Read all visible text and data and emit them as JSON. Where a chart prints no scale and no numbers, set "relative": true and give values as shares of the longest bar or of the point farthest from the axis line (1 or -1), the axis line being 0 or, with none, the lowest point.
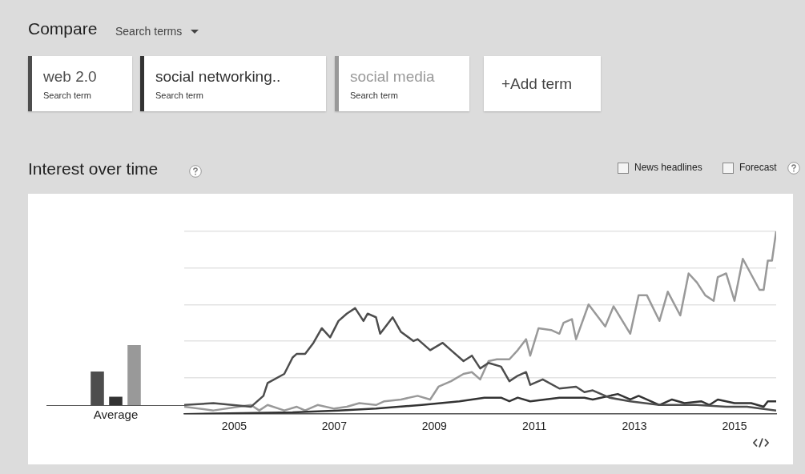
{
  "chart_data": [
    {
      "type": "other",
      "title": "Compare",
      "subtitle": "Search terms",
      "annotations": [
        "+Add term",
        "Search term",
        "Search term",
        "Search term"
      ]
    },
    {
      "type": "bar",
      "categories": [
        null,
        "Average",
        null
      ],
      "relative": true,
      "values": [
        0.56,
        0.14,
        1
      ],
      "colors": [
        "#4d4d4d",
        "#333333",
        "#999999"
      ]
    },
    {
      "type": "line",
      "title": "Interest over time",
      "relative": true,
      "grid": "y",
      "legend": "top left",
      "marker": "none",
      "line_style": "solid",
      "xlim": [
        "2004-01",
        "2015-11"
      ],
      "xticks": [
        "2005",
        "2007",
        "2009",
        "2011",
        "2013",
        "2015"
      ],
      "annotations": [
        "News headlines",
        "Forecast"
      ],
      "series": [
        {
          "name": "web 2.0",
          "color": "#4d4d4d",
          "x": [
            "2004-01",
            "2004-08",
            "2005-05",
            "2005-08",
            "2005-09",
            "2006-01",
            "2006-03",
            "2006-04",
            "2006-06",
            "2006-08",
            "2006-10",
            "2006-12",
            "2007-02",
            "2007-04",
            "2007-06",
            "2007-08",
            "2007-09",
            "2007-11",
            "2007-12",
            "2008-01",
            "2008-03",
            "2008-05",
            "2008-08",
            "2008-09",
            "2008-12",
            "2009-03",
            "2009-05",
            "2009-08",
            "2009-10",
            "2009-12",
            "2010-02",
            "2010-05",
            "2010-07",
            "2010-09",
            "2010-11",
            "2010-12",
            "2011-03",
            "2011-07",
            "2011-11",
            "2012-01",
            "2012-03",
            "2012-07",
            "2012-12",
            "2013-07",
            "2014-04",
            "2014-11",
            "2015-04",
            "2015-11"
          ],
          "values": [
            0.05,
            0.06,
            0.04,
            0.1,
            0.17,
            0.22,
            0.31,
            0.33,
            0.33,
            0.39,
            0.47,
            0.42,
            0.51,
            0.55,
            0.58,
            0.51,
            0.55,
            0.53,
            0.44,
            0.47,
            0.53,
            0.45,
            0.4,
            0.41,
            0.35,
            0.39,
            0.35,
            0.29,
            0.32,
            0.25,
            0.28,
            0.26,
            0.18,
            0.21,
            0.23,
            0.16,
            0.19,
            0.14,
            0.15,
            0.12,
            0.13,
            0.09,
            0.07,
            0.05,
            0.05,
            0.04,
            0.04,
            0.02
          ]
        },
        {
          "name": "social networking..",
          "color": "#333333",
          "x": [
            "2004-01",
            "2006-03",
            "2007-02",
            "2007-11",
            "2008-10",
            "2009-07",
            "2010-01",
            "2010-05",
            "2010-07",
            "2010-09",
            "2010-12",
            "2011-07",
            "2012-01",
            "2012-03",
            "2012-09",
            "2012-12",
            "2013-02",
            "2013-07",
            "2013-10",
            "2014-01",
            "2014-05",
            "2014-07",
            "2014-09",
            "2015-01",
            "2015-05",
            "2015-08",
            "2015-09",
            "2015-11"
          ],
          "values": [
            0,
            0.01,
            0.02,
            0.03,
            0.05,
            0.07,
            0.09,
            0.09,
            0.07,
            0.09,
            0.07,
            0.09,
            0.09,
            0.08,
            0.11,
            0.08,
            0.1,
            0.05,
            0.08,
            0.06,
            0.07,
            0.05,
            0.08,
            0.06,
            0.06,
            0.04,
            0.07,
            0.07
          ]
        },
        {
          "name": "social media",
          "color": "#999999",
          "x": [
            "2004-01",
            "2004-08",
            "2005-05",
            "2005-07",
            "2005-09",
            "2006-01",
            "2006-04",
            "2006-06",
            "2006-09",
            "2007-01",
            "2007-04",
            "2007-07",
            "2007-11",
            "2008-01",
            "2008-05",
            "2008-09",
            "2008-12",
            "2009-02",
            "2009-05",
            "2009-08",
            "2009-10",
            "2009-12",
            "2010-02",
            "2010-04",
            "2010-07",
            "2010-09",
            "2010-11",
            "2010-12",
            "2011-02",
            "2011-05",
            "2011-07",
            "2011-08",
            "2011-10",
            "2011-11",
            "2012-02",
            "2012-04",
            "2012-06",
            "2012-08",
            "2012-12",
            "2013-02",
            "2013-04",
            "2013-07",
            "2013-09",
            "2013-12",
            "2014-02",
            "2014-04",
            "2014-06",
            "2014-08",
            "2014-09",
            "2014-11",
            "2015-01",
            "2015-03",
            "2015-07",
            "2015-08",
            "2015-09",
            "2015-10",
            "2015-11"
          ],
          "values": [
            0.04,
            0.02,
            0.05,
            0.02,
            0.05,
            0.02,
            0.04,
            0.02,
            0.05,
            0.03,
            0.04,
            0.06,
            0.05,
            0.07,
            0.08,
            0.1,
            0.08,
            0.15,
            0.18,
            0.22,
            0.23,
            0.19,
            0.29,
            0.3,
            0.3,
            0.35,
            0.41,
            0.32,
            0.47,
            0.46,
            0.44,
            0.5,
            0.52,
            0.41,
            0.6,
            0.54,
            0.48,
            0.59,
            0.44,
            0.65,
            0.65,
            0.51,
            0.67,
            0.54,
            0.77,
            0.72,
            0.65,
            0.62,
            0.75,
            0.77,
            0.62,
            0.85,
            0.68,
            0.68,
            0.84,
            0.84,
            1
          ]
        }
      ]
    }
  ]
}
